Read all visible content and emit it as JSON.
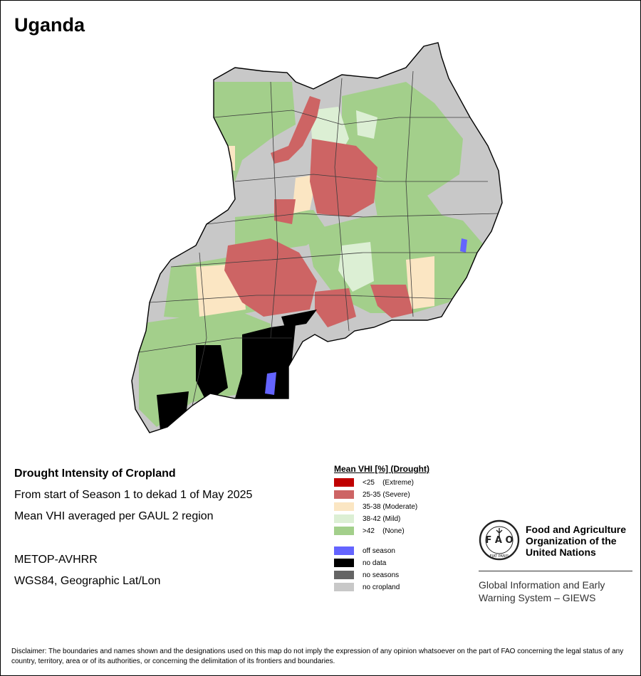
{
  "country": "Uganda",
  "info": {
    "heading": "Drought Intensity of Cropland",
    "period": "From start of Season 1 to dekad 1 of May 2025",
    "method": "Mean VHI averaged per GAUL 2 region",
    "sensor": "METOP-AVHRR",
    "projection": "WGS84, Geographic Lat/Lon"
  },
  "legend": {
    "title": "Mean VHI [%] (Drought)",
    "classes": [
      {
        "label": "<25    (Extreme)",
        "color": "#c00000"
      },
      {
        "label": "25-35 (Severe)",
        "color": "#cd6464"
      },
      {
        "label": "35-38 (Moderate)",
        "color": "#fbe6c3"
      },
      {
        "label": "38-42 (Mild)",
        "color": "#dcefd4"
      },
      {
        "label": ">42    (None)",
        "color": "#a3cf8b"
      }
    ],
    "other": [
      {
        "label": "off season",
        "color": "#6464ff"
      },
      {
        "label": "no data",
        "color": "#000000"
      },
      {
        "label": "no seasons",
        "color": "#646464"
      },
      {
        "label": "no cropland",
        "color": "#c8c8c8"
      }
    ]
  },
  "map_colors": {
    "outline": "#000000",
    "border": "#3c3c3c",
    "lake": "#ffffff"
  },
  "org": {
    "name_lines": [
      "Food and Agriculture",
      "Organization of the",
      "United Nations"
    ],
    "logo_text": "FIAT PANIS",
    "program_lines": [
      "Global Information and Early",
      "Warning System – GIEWS"
    ]
  },
  "disclaimer": "Disclaimer: The boundaries and names shown and the designations used on this map do not imply the expression of any opinion whatsoever on the part of FAO concerning the legal status of any country, territory, area or of its authorities, or concerning the delimitation of its frontiers and boundaries."
}
